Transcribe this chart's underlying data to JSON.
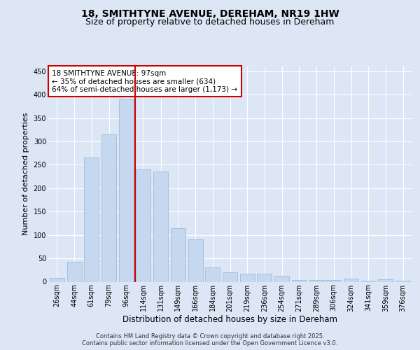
{
  "title": "18, SMITHTYNE AVENUE, DEREHAM, NR19 1HW",
  "subtitle": "Size of property relative to detached houses in Dereham",
  "xlabel": "Distribution of detached houses by size in Dereham",
  "ylabel": "Number of detached properties",
  "categories": [
    "26sqm",
    "44sqm",
    "61sqm",
    "79sqm",
    "96sqm",
    "114sqm",
    "131sqm",
    "149sqm",
    "166sqm",
    "184sqm",
    "201sqm",
    "219sqm",
    "236sqm",
    "254sqm",
    "271sqm",
    "289sqm",
    "306sqm",
    "324sqm",
    "341sqm",
    "359sqm",
    "376sqm"
  ],
  "values": [
    8,
    42,
    265,
    315,
    390,
    240,
    235,
    115,
    90,
    30,
    20,
    17,
    17,
    13,
    3,
    3,
    3,
    7,
    2,
    5,
    2
  ],
  "bar_color": "#c5d8f0",
  "bar_edge_color": "#9bbdd8",
  "vline_pos": 4.5,
  "annotation_text": "18 SMITHTYNE AVENUE: 97sqm\n← 35% of detached houses are smaller (634)\n64% of semi-detached houses are larger (1,173) →",
  "annotation_box_color": "#ffffff",
  "annotation_box_edge": "#cc0000",
  "vline_color": "#cc0000",
  "ylim": [
    0,
    460
  ],
  "yticks": [
    0,
    50,
    100,
    150,
    200,
    250,
    300,
    350,
    400,
    450
  ],
  "background_color": "#dce6f5",
  "plot_background": "#dce6f5",
  "grid_color": "#ffffff",
  "footer": "Contains HM Land Registry data © Crown copyright and database right 2025.\nContains public sector information licensed under the Open Government Licence v3.0.",
  "title_fontsize": 10,
  "subtitle_fontsize": 9,
  "ylabel_fontsize": 8,
  "xlabel_fontsize": 8.5,
  "tick_fontsize": 7,
  "footer_fontsize": 6,
  "annot_fontsize": 7.5
}
